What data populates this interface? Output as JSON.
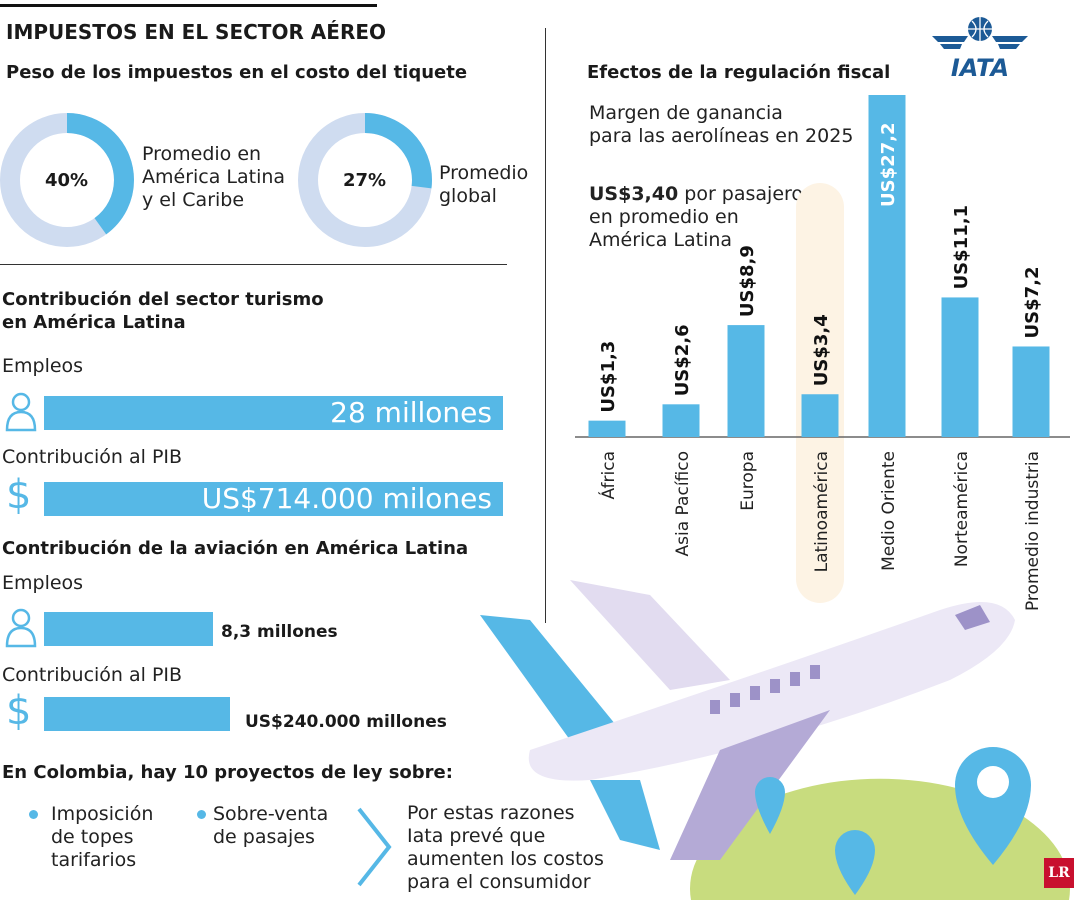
{
  "header": {
    "title": "IMPUESTOS EN EL SECTOR AÉREO",
    "logo_text": "IATA"
  },
  "taxes": {
    "title": "Peso de los impuestos en el costo del tiquete",
    "donuts": [
      {
        "percent": 40,
        "label": "40%",
        "caption": [
          "Promedio en",
          "América Latina",
          "y el Caribe"
        ]
      },
      {
        "percent": 27,
        "label": "27%",
        "caption": [
          "Promedio",
          "global"
        ]
      }
    ]
  },
  "tourism": {
    "title": [
      "Contribución del sector turismo",
      "en América Latina"
    ],
    "employment_label": "Empleos",
    "employment_value": "28 millones",
    "gdp_label": "Contribución al PIB",
    "gdp_value": "US$714.000 milones"
  },
  "aviation": {
    "title": "Contribución de la aviación en América Latina",
    "employment_label": "Empleos",
    "employment_value": "8,3 millones",
    "gdp_label": "Contribución al PIB",
    "gdp_value": "US$240.000 millones"
  },
  "colombia": {
    "title": "En Colombia, hay 10 proyectos de ley sobre:",
    "items": [
      [
        "Imposición",
        "de topes",
        "tarifarios"
      ],
      [
        "Sobre-venta",
        "de pasajes"
      ]
    ],
    "conclusion": [
      "Por estas razones",
      "Iata prevé que",
      "aumenten los costos",
      "para el consumidor"
    ]
  },
  "chart_data": {
    "type": "bar",
    "title": "Efectos de la regulación fiscal",
    "subtitle": [
      "Margen de ganancia",
      "para las aerolíneas en 2025"
    ],
    "annotation": {
      "bold": "US$3,40",
      "rest": [
        " por pasajero",
        "en promedio en",
        "América Latina"
      ]
    },
    "categories": [
      "África",
      "Asia Pacífico",
      "Europa",
      "Latinoamérica",
      "Medio Oriente",
      "Norteamérica",
      "Promedio industria"
    ],
    "values": [
      1.3,
      2.6,
      8.9,
      3.4,
      27.2,
      11.1,
      7.2
    ],
    "data_labels": [
      "US$1,3",
      "US$2,6",
      "US$8,9",
      "US$3,4",
      "US$27,2",
      "US$11,1",
      "US$7,2"
    ],
    "highlight": "Latinoamérica",
    "ylim": [
      0,
      27.2
    ],
    "grid": false,
    "colors": {
      "bar": "#56b8e6",
      "highlight_bg": "#fdf3e4"
    }
  },
  "colors": {
    "accent": "#56b8e6",
    "donut_bg": "#cfdcf0",
    "iata": "#1c5a96"
  },
  "badge": "LR"
}
